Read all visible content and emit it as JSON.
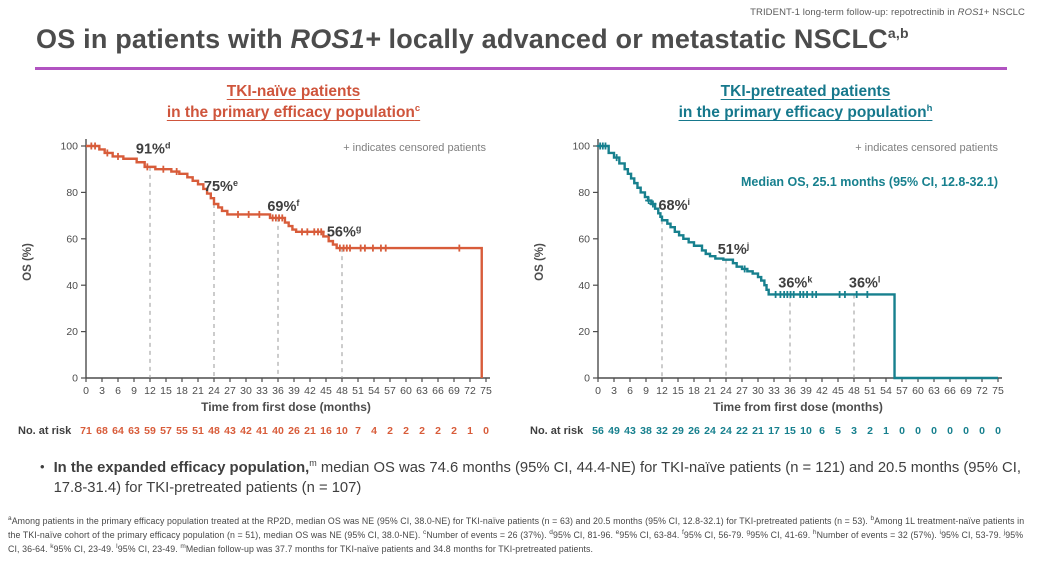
{
  "running_header": {
    "pre": "TRIDENT-1 long-term follow-up: repotrectinib in ",
    "italic": "ROS1",
    "post": "+ NSCLC"
  },
  "title": {
    "pre": "OS in patients with ",
    "italic": "ROS1+",
    "post": " locally advanced or metastatic NSCLC",
    "sup": "a,b"
  },
  "colors": {
    "tki_naive_accent": "#d85c3a",
    "tki_pretreated_accent": "#17808e",
    "title_underline": "#b153c1",
    "axis": "#4d4d4d",
    "dashline": "#999999",
    "note_gray": "#7f7f7f"
  },
  "bullet": {
    "marker": "•",
    "bold": "In the expanded efficacy population,",
    "sup": "m",
    "rest": " median OS was 74.6 months (95% CI, 44.4-NE) for TKI-naïve patients (n = 121) and 20.5 months (95% CI, 17.8-31.4) for TKI-pretreated patients (n = 107)"
  },
  "footnotes": [
    {
      "sup": "a",
      "text": "Among patients in the primary efficacy population treated at the RP2D, median OS was NE (95% CI, 38.0-NE) for TKI-naïve patients (n = 63) and 20.5 months (95% CI, 12.8-32.1) for TKI-pretreated patients (n = 53)."
    },
    {
      "sup": "b",
      "text": "Among 1L treatment-naïve patients in the TKI-naïve cohort of the primary efficacy population (n = 51), median OS was NE (95% CI, 38.0-NE)."
    },
    {
      "sup": "c",
      "text": "Number of events = 26 (37%)."
    },
    {
      "sup": "d",
      "text": "95% CI, 81-96."
    },
    {
      "sup": "e",
      "text": "95% CI, 63-84."
    },
    {
      "sup": "f",
      "text": "95% CI, 56-79."
    },
    {
      "sup": "g",
      "text": "95% CI, 41-69."
    },
    {
      "sup": "h",
      "text": "Number of events = 32 (57%)."
    },
    {
      "sup": "i",
      "text": "95% CI, 53-79."
    },
    {
      "sup": "j",
      "text": "95% CI, 36-64."
    },
    {
      "sup": "k",
      "text": "95% CI, 23-49."
    },
    {
      "sup": "l",
      "text": "95% CI, 23-49."
    },
    {
      "sup": "m",
      "text": "Median follow-up was 37.7 months for TKI-naïve patients and 34.8 months for TKI-pretreated patients."
    }
  ],
  "chart_data": [
    {
      "type": "line",
      "curve": "kaplan-meier-step",
      "name": "tki-naive",
      "heading_line1": "TKI-naïve patients",
      "heading_line2": "in the primary efficacy population",
      "heading_sup": "c",
      "color": "#d85c3a",
      "ylabel": "OS (%)",
      "xlabel": "Time from first dose (months)",
      "censored_note": "+ indicates censored patients",
      "ylim": [
        0,
        100
      ],
      "y_ticks": [
        0,
        20,
        40,
        60,
        80,
        100
      ],
      "x_ticks": [
        0,
        3,
        6,
        9,
        12,
        15,
        18,
        21,
        24,
        27,
        30,
        33,
        36,
        39,
        42,
        45,
        48,
        51,
        54,
        57,
        60,
        63,
        66,
        69,
        72,
        75
      ],
      "steps": [
        [
          2.5,
          98.5
        ],
        [
          3.5,
          97
        ],
        [
          5,
          95.5
        ],
        [
          7,
          94.5
        ],
        [
          9.5,
          93
        ],
        [
          11,
          91
        ],
        [
          13,
          90
        ],
        [
          16,
          89
        ],
        [
          17.5,
          88
        ],
        [
          19,
          86.5
        ],
        [
          20,
          85
        ],
        [
          21,
          83.5
        ],
        [
          22,
          81.5
        ],
        [
          22.7,
          79.5
        ],
        [
          23.4,
          77.5
        ],
        [
          24,
          75
        ],
        [
          24.8,
          73.5
        ],
        [
          25.5,
          72
        ],
        [
          26.5,
          70.5
        ],
        [
          34.5,
          69
        ],
        [
          37.3,
          67
        ],
        [
          38,
          65.5
        ],
        [
          38.7,
          64
        ],
        [
          39.4,
          63
        ],
        [
          44.5,
          61
        ],
        [
          45.5,
          59
        ],
        [
          46.3,
          57.5
        ],
        [
          47,
          56
        ],
        [
          74.2,
          0
        ]
      ],
      "censor_times": [
        1,
        1.7,
        4,
        6,
        11.5,
        14.5,
        17,
        28.5,
        30.5,
        32.5,
        35,
        35.6,
        36.2,
        36.8,
        40.5,
        41.5,
        42.8,
        43.5,
        44.1,
        47.6,
        48.3,
        48.9,
        49.5,
        51.5,
        52.3,
        53.8,
        55.3,
        56.2,
        70
      ],
      "dashlines": [
        12,
        24,
        36,
        48
      ],
      "annotations": [
        {
          "t": 12.6,
          "v": 96.8,
          "label": "91%",
          "sup": "d"
        },
        {
          "t": 25.3,
          "v": 80.5,
          "label": "75%",
          "sup": "e"
        },
        {
          "t": 37.0,
          "v": 72.0,
          "label": "69%",
          "sup": "f"
        },
        {
          "t": 48.4,
          "v": 61.0,
          "label": "56%",
          "sup": "g"
        }
      ],
      "landmark_os": {
        "12": 91,
        "24": 75,
        "36": 69,
        "48": 56
      },
      "at_risk_label": "No. at risk",
      "at_risk": [
        71,
        68,
        64,
        63,
        59,
        57,
        55,
        51,
        48,
        43,
        42,
        41,
        40,
        26,
        21,
        16,
        10,
        7,
        4,
        2,
        2,
        2,
        2,
        2,
        1,
        0
      ]
    },
    {
      "type": "line",
      "curve": "kaplan-meier-step",
      "name": "tki-pretreated",
      "heading_line1": "TKI-pretreated patients",
      "heading_line2": "in the primary efficacy population",
      "heading_sup": "h",
      "color": "#17808e",
      "ylabel": "OS (%)",
      "xlabel": "Time from first dose (months)",
      "censored_note": "+ indicates censored patients",
      "median_label": "Median OS, 25.1 months (95% CI, 12.8-32.1)",
      "ylim": [
        0,
        100
      ],
      "y_ticks": [
        0,
        20,
        40,
        60,
        80,
        100
      ],
      "x_ticks": [
        0,
        3,
        6,
        9,
        12,
        15,
        18,
        21,
        24,
        27,
        30,
        33,
        36,
        39,
        42,
        45,
        48,
        51,
        54,
        57,
        60,
        63,
        66,
        69,
        72,
        75
      ],
      "steps": [
        [
          2,
          97
        ],
        [
          3,
          95
        ],
        [
          4,
          92.5
        ],
        [
          5,
          90
        ],
        [
          5.6,
          88
        ],
        [
          6.2,
          86
        ],
        [
          6.8,
          84
        ],
        [
          7.4,
          82
        ],
        [
          8,
          80
        ],
        [
          8.8,
          78
        ],
        [
          9.4,
          76.5
        ],
        [
          10,
          75
        ],
        [
          10.7,
          73
        ],
        [
          11.3,
          71
        ],
        [
          11.7,
          69.5
        ],
        [
          12,
          68
        ],
        [
          13,
          66.5
        ],
        [
          13.6,
          65
        ],
        [
          14.4,
          63
        ],
        [
          15.2,
          61.5
        ],
        [
          16,
          60
        ],
        [
          17,
          58.5
        ],
        [
          18,
          57
        ],
        [
          19.5,
          55
        ],
        [
          20.2,
          53.5
        ],
        [
          21,
          52.5
        ],
        [
          22,
          51.5
        ],
        [
          23.5,
          51
        ],
        [
          25.3,
          49.5
        ],
        [
          26,
          48
        ],
        [
          27,
          47
        ],
        [
          28,
          46
        ],
        [
          29,
          45
        ],
        [
          30,
          43.5
        ],
        [
          30.6,
          42
        ],
        [
          31.2,
          40
        ],
        [
          31.6,
          38
        ],
        [
          32,
          36
        ],
        [
          55.6,
          0
        ]
      ],
      "zero_tail_to": 75,
      "censor_times": [
        0.4,
        0.9,
        1.4,
        3.5,
        9.5,
        10.3,
        27.5,
        33.3,
        34.2,
        34.9,
        35.5,
        36.1,
        36.7,
        37.9,
        38.5,
        39.2,
        40.2,
        40.9,
        45.3,
        46.3,
        48.5,
        50.5
      ],
      "dashlines": [
        12,
        24,
        36,
        48
      ],
      "annotations": [
        {
          "t": 14.3,
          "v": 72.5,
          "label": "68%",
          "sup": "i"
        },
        {
          "t": 25.4,
          "v": 53.5,
          "label": "51%",
          "sup": "j"
        },
        {
          "t": 37.0,
          "v": 39.0,
          "label": "36%",
          "sup": "k"
        },
        {
          "t": 50.0,
          "v": 39.0,
          "label": "36%",
          "sup": "l"
        }
      ],
      "landmark_os": {
        "12": 68,
        "24": 51,
        "36": 36,
        "48": 36
      },
      "at_risk_label": "No. at risk",
      "at_risk": [
        56,
        49,
        43,
        38,
        32,
        29,
        26,
        24,
        24,
        22,
        21,
        17,
        15,
        10,
        6,
        5,
        3,
        2,
        1,
        0,
        0,
        0,
        0,
        0,
        0,
        0
      ]
    }
  ]
}
